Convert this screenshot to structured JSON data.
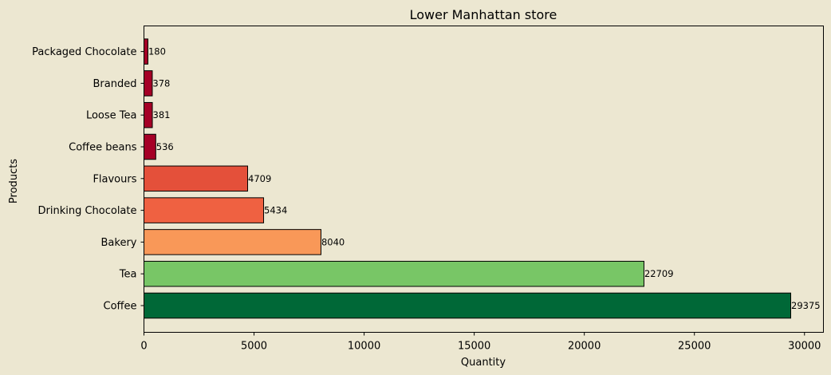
{
  "chart_data": {
    "type": "bar",
    "orientation": "horizontal",
    "title": "Lower Manhattan store",
    "xlabel": "Quantity",
    "ylabel": "Products",
    "categories": [
      "Coffee",
      "Tea",
      "Bakery",
      "Drinking Chocolate",
      "Flavours",
      "Coffee beans",
      "Loose Tea",
      "Branded",
      "Packaged Chocolate"
    ],
    "values": [
      29375,
      22709,
      8040,
      5434,
      4709,
      536,
      381,
      378,
      180
    ],
    "data_labels": [
      "29375",
      "22709",
      "8040",
      "5434",
      "4709",
      "536",
      "381",
      "378",
      "180"
    ],
    "bar_colors": [
      "#006837",
      "#78c666",
      "#f99858",
      "#ef6141",
      "#e4503a",
      "#a50026",
      "#a50026",
      "#a50026",
      "#a50026"
    ],
    "xlim": [
      0,
      30860
    ],
    "xticks": [
      0,
      5000,
      10000,
      15000,
      20000,
      25000,
      30000
    ],
    "xtick_labels": [
      "0",
      "5000",
      "10000",
      "15000",
      "20000",
      "25000",
      "30000"
    ],
    "grid": false,
    "background": "#ece7d1",
    "edge_color": "#000000"
  }
}
